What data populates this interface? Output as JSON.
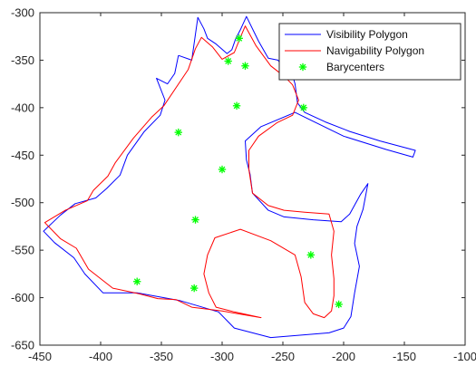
{
  "chart_data": {
    "type": "line",
    "title": "",
    "xlabel": "",
    "ylabel": "",
    "xlim": [
      -450,
      -100
    ],
    "ylim": [
      -650,
      -300
    ],
    "xticks": [
      -450,
      -400,
      -350,
      -300,
      -250,
      -200,
      -150,
      -100
    ],
    "yticks": [
      -300,
      -350,
      -400,
      -450,
      -500,
      -550,
      -600,
      -650
    ],
    "grid": false,
    "legend_location": "top-right",
    "series": [
      {
        "name": "Visibility Polygon",
        "color": "#0000ff",
        "style": "line",
        "points": [
          [
            -336,
            -345
          ],
          [
            -325,
            -350
          ],
          [
            -320,
            -305
          ],
          [
            -315,
            -317
          ],
          [
            -312,
            -327
          ],
          [
            -305,
            -333
          ],
          [
            -296,
            -343
          ],
          [
            -292,
            -339
          ],
          [
            -289,
            -328
          ],
          [
            -285,
            -318
          ],
          [
            -280,
            -304
          ],
          [
            -270,
            -330
          ],
          [
            -262,
            -348
          ],
          [
            -254,
            -350
          ],
          [
            -248,
            -361
          ],
          [
            -242,
            -366
          ],
          [
            -240,
            -375
          ],
          [
            -238,
            -395
          ],
          [
            -232,
            -405
          ],
          [
            -215,
            -415
          ],
          [
            -195,
            -425
          ],
          [
            -170,
            -435
          ],
          [
            -141,
            -445
          ],
          [
            -143,
            -452
          ],
          [
            -165,
            -444
          ],
          [
            -200,
            -430
          ],
          [
            -240,
            -405
          ],
          [
            -268,
            -420
          ],
          [
            -281,
            -435
          ],
          [
            -280,
            -455
          ],
          [
            -277,
            -470
          ],
          [
            -275,
            -490
          ],
          [
            -262,
            -508
          ],
          [
            -249,
            -515
          ],
          [
            -225,
            -518
          ],
          [
            -202,
            -520
          ],
          [
            -195,
            -512
          ],
          [
            -186,
            -491
          ],
          [
            -180,
            -480
          ],
          [
            -184,
            -507
          ],
          [
            -189,
            -525
          ],
          [
            -191,
            -543
          ],
          [
            -187,
            -567
          ],
          [
            -191,
            -595
          ],
          [
            -194,
            -620
          ],
          [
            -200,
            -632
          ],
          [
            -212,
            -637
          ],
          [
            -260,
            -642
          ],
          [
            -290,
            -632
          ],
          [
            -303,
            -615
          ],
          [
            -335,
            -603
          ],
          [
            -370,
            -595
          ],
          [
            -398,
            -595
          ],
          [
            -413,
            -575
          ],
          [
            -422,
            -558
          ],
          [
            -438,
            -542
          ],
          [
            -447,
            -530
          ],
          [
            -433,
            -513
          ],
          [
            -421,
            -501
          ],
          [
            -404,
            -495
          ],
          [
            -395,
            -485
          ],
          [
            -384,
            -471
          ],
          [
            -378,
            -450
          ],
          [
            -364,
            -425
          ],
          [
            -351,
            -408
          ],
          [
            -347,
            -392
          ],
          [
            -354,
            -369
          ],
          [
            -345,
            -375
          ],
          [
            -339,
            -364
          ],
          [
            -336,
            -345
          ]
        ]
      },
      {
        "name": "Navigability Polygon",
        "color": "#ff0000",
        "style": "line",
        "points": [
          [
            -348,
            -398
          ],
          [
            -328,
            -360
          ],
          [
            -322,
            -338
          ],
          [
            -317,
            -326
          ],
          [
            -308,
            -336
          ],
          [
            -300,
            -349
          ],
          [
            -290,
            -342
          ],
          [
            -285,
            -326
          ],
          [
            -281,
            -314
          ],
          [
            -272,
            -335
          ],
          [
            -260,
            -356
          ],
          [
            -248,
            -368
          ],
          [
            -242,
            -376
          ],
          [
            -237,
            -392
          ],
          [
            -242,
            -408
          ],
          [
            -255,
            -416
          ],
          [
            -270,
            -430
          ],
          [
            -278,
            -445
          ],
          [
            -278,
            -465
          ],
          [
            -275,
            -490
          ],
          [
            -262,
            -503
          ],
          [
            -249,
            -508
          ],
          [
            -232,
            -510
          ],
          [
            -212,
            -512
          ],
          [
            -208,
            -530
          ],
          [
            -210,
            -555
          ],
          [
            -208,
            -580
          ],
          [
            -208,
            -598
          ],
          [
            -210,
            -614
          ],
          [
            -216,
            -621
          ],
          [
            -225,
            -617
          ],
          [
            -232,
            -605
          ],
          [
            -235,
            -578
          ],
          [
            -240,
            -555
          ],
          [
            -260,
            -540
          ],
          [
            -285,
            -528
          ],
          [
            -306,
            -537
          ],
          [
            -312,
            -555
          ],
          [
            -315,
            -575
          ],
          [
            -311,
            -595
          ],
          [
            -305,
            -610
          ],
          [
            -290,
            -615
          ],
          [
            -268,
            -621
          ],
          [
            -300,
            -614
          ],
          [
            -325,
            -610
          ],
          [
            -338,
            -602
          ],
          [
            -353,
            -601
          ],
          [
            -368,
            -596
          ],
          [
            -390,
            -590
          ],
          [
            -410,
            -570
          ],
          [
            -420,
            -548
          ],
          [
            -433,
            -538
          ],
          [
            -446,
            -521
          ],
          [
            -429,
            -508
          ],
          [
            -411,
            -498
          ],
          [
            -406,
            -487
          ],
          [
            -394,
            -472
          ],
          [
            -388,
            -458
          ],
          [
            -373,
            -432
          ],
          [
            -358,
            -410
          ],
          [
            -348,
            -398
          ]
        ]
      },
      {
        "name": "Barycenters",
        "color": "#00ff00",
        "style": "markers",
        "points": [
          [
            -286,
            -327
          ],
          [
            -295,
            -351
          ],
          [
            -281,
            -356
          ],
          [
            -288,
            -398
          ],
          [
            -233,
            -400
          ],
          [
            -336,
            -426
          ],
          [
            -300,
            -465
          ],
          [
            -322,
            -518
          ],
          [
            -227,
            -555
          ],
          [
            -370,
            -583
          ],
          [
            -323,
            -590
          ],
          [
            -204,
            -607
          ]
        ]
      }
    ]
  }
}
